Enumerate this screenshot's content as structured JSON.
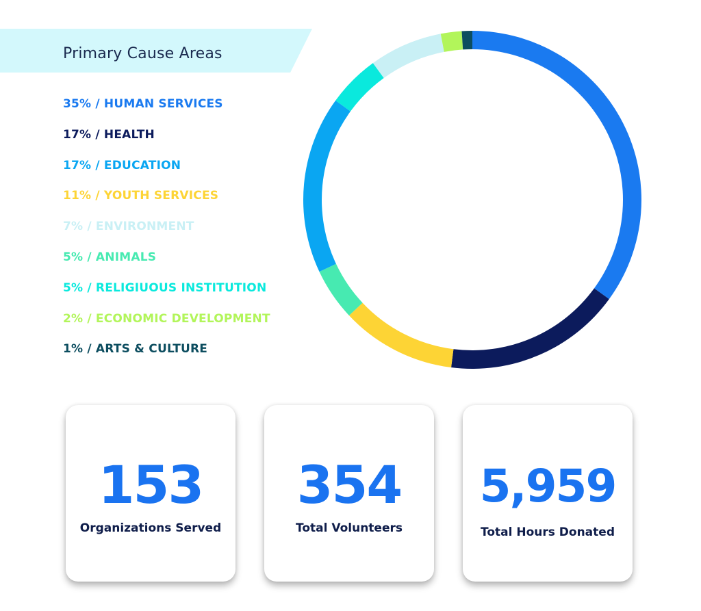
{
  "chart_data": {
    "type": "pie",
    "title": "Primary Cause Areas",
    "legend_position": "left",
    "slices": [
      {
        "pct": 35,
        "label": "35% / HUMAN SERVICES",
        "color": "#1a7af0"
      },
      {
        "pct": 17,
        "label": "17% / HEALTH",
        "color": "#0c1b5c"
      },
      {
        "pct": 17,
        "label": "17% / EDUCATION",
        "color": "#0aa6f2"
      },
      {
        "pct": 11,
        "label": "11% / YOUTH SERVICES",
        "color": "#fdd435"
      },
      {
        "pct": 7,
        "label": "7% / ENVIRONMENT",
        "color": "#c9f0f5"
      },
      {
        "pct": 5,
        "label": "5% / ANIMALS",
        "color": "#47eab1"
      },
      {
        "pct": 5,
        "label": "5% / RELIGIUOUS INSTITUTION",
        "color": "#0ae9dd"
      },
      {
        "pct": 2,
        "label": "2% / ECONOMIC DEVELOPMENT",
        "color": "#b2f55a"
      },
      {
        "pct": 1,
        "label": "1% / ARTS & CULTURE",
        "color": "#0c4d5f"
      }
    ],
    "ring_order": [
      0,
      1,
      3,
      5,
      2,
      6,
      4,
      7,
      8
    ]
  },
  "stats": [
    {
      "value": "153",
      "label": "Organizations Served"
    },
    {
      "value": "354",
      "label": "Total Volunteers"
    },
    {
      "value": "5,959",
      "label": "Total Hours Donated"
    }
  ]
}
